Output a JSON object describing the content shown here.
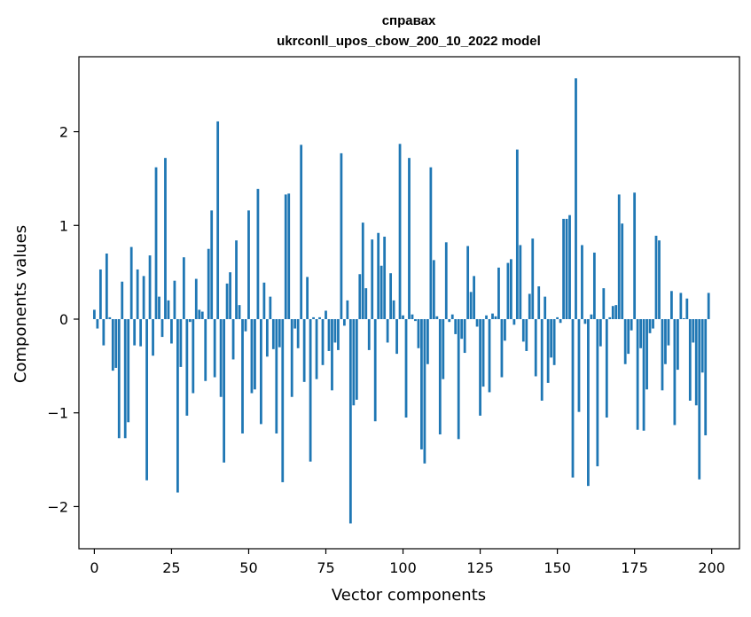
{
  "chart_data": {
    "type": "bar",
    "title_line1": "справах",
    "title_line2": "ukrconll_upos_cbow_200_10_2022 model",
    "xlabel": "Vector components",
    "ylabel": "Components values",
    "xlim": [
      -5,
      209
    ],
    "ylim": [
      -2.45,
      2.8
    ],
    "xticks": [
      0,
      25,
      50,
      75,
      100,
      125,
      150,
      175,
      200
    ],
    "xtick_labels": [
      "0",
      "25",
      "50",
      "75",
      "100",
      "125",
      "150",
      "175",
      "200"
    ],
    "yticks": [
      -2,
      -1,
      0,
      1,
      2
    ],
    "ytick_labels": [
      "−2",
      "−1",
      "0",
      "1",
      "2"
    ],
    "bar_color": "#1f77b4",
    "grid": false,
    "values": [
      0.1,
      -0.1,
      0.53,
      -0.28,
      0.7,
      0.02,
      -0.55,
      -0.52,
      -1.27,
      0.4,
      -1.27,
      -1.1,
      0.77,
      -0.28,
      0.53,
      -0.29,
      0.46,
      -1.72,
      0.68,
      -0.39,
      1.62,
      0.24,
      -0.19,
      1.72,
      0.2,
      -0.26,
      0.41,
      -1.85,
      -0.51,
      0.66,
      -1.03,
      -0.03,
      -0.79,
      0.43,
      0.1,
      0.08,
      -0.66,
      0.75,
      1.16,
      -0.62,
      2.11,
      -0.83,
      -1.53,
      0.38,
      0.5,
      -0.43,
      0.84,
      0.15,
      -1.22,
      -0.13,
      1.16,
      -0.79,
      -0.75,
      1.39,
      -1.12,
      0.39,
      -0.4,
      0.24,
      -0.32,
      -1.22,
      -0.3,
      -1.74,
      1.33,
      1.34,
      -0.83,
      -0.1,
      -0.31,
      1.86,
      -0.67,
      0.45,
      -1.52,
      0.02,
      -0.64,
      0.02,
      -0.49,
      0.09,
      -0.34,
      -0.76,
      -0.25,
      -0.33,
      1.77,
      -0.07,
      0.2,
      -2.18,
      -0.92,
      -0.86,
      0.48,
      1.03,
      0.33,
      -0.33,
      0.85,
      -1.09,
      0.92,
      0.57,
      0.88,
      -0.25,
      0.49,
      0.2,
      -0.37,
      1.87,
      0.04,
      -1.05,
      1.72,
      0.05,
      -0.02,
      -0.31,
      -1.39,
      -1.54,
      -0.48,
      1.62,
      0.63,
      0.03,
      -1.23,
      -0.64,
      0.82,
      -0.03,
      0.05,
      -0.16,
      -1.28,
      -0.21,
      -0.36,
      0.78,
      0.29,
      0.46,
      -0.08,
      -1.03,
      -0.72,
      0.04,
      -0.78,
      0.06,
      0.03,
      0.55,
      -0.62,
      -0.23,
      0.6,
      0.64,
      -0.06,
      1.81,
      0.79,
      -0.24,
      -0.34,
      0.27,
      0.86,
      -0.61,
      0.35,
      -0.87,
      0.24,
      -0.68,
      -0.41,
      -0.49,
      0.02,
      -0.04,
      1.07,
      1.07,
      1.11,
      -1.69,
      2.57,
      -0.99,
      0.79,
      -0.05,
      -1.78,
      0.05,
      0.71,
      -1.57,
      -0.29,
      0.33,
      -1.05,
      0.02,
      0.14,
      0.15,
      1.33,
      1.02,
      -0.48,
      -0.37,
      -0.12,
      1.35,
      -1.18,
      -0.31,
      -1.19,
      -0.75,
      -0.15,
      -0.1,
      0.89,
      0.84,
      -0.76,
      -0.48,
      -0.28,
      0.3,
      -1.13,
      -0.54,
      0.28,
      0.01,
      0.22,
      -0.87,
      -0.25,
      -0.92,
      -1.71,
      -0.57,
      -1.24,
      0.28
    ]
  }
}
